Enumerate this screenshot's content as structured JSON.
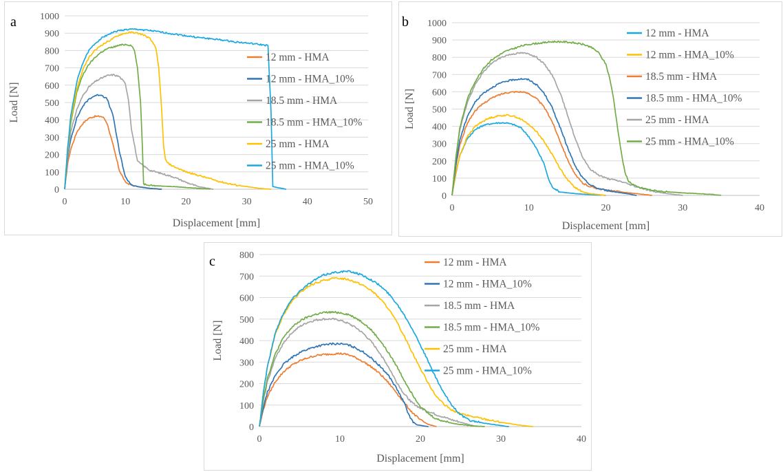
{
  "chart_data": [
    {
      "type": "line",
      "panel_label": "a",
      "xlabel": "Displacement [mm]",
      "ylabel": "Load [N]",
      "xlim": [
        0,
        50
      ],
      "ylim": [
        0,
        1000
      ],
      "x_ticks": [
        "0",
        "10",
        "20",
        "30",
        "40",
        "50"
      ],
      "y_ticks": [
        "0",
        "100",
        "200",
        "300",
        "400",
        "500",
        "600",
        "700",
        "800",
        "900",
        "1000"
      ],
      "grid": "horizontal",
      "legend_position": "right",
      "series": [
        {
          "name": "12 mm - HMA",
          "color": "#ED7D31",
          "x": [
            0,
            0.5,
            1,
            2,
            3,
            4,
            5,
            6,
            6.5,
            7,
            8,
            9,
            10,
            11,
            12,
            14,
            16
          ],
          "y": [
            0,
            150,
            230,
            330,
            380,
            410,
            420,
            420,
            410,
            380,
            250,
            110,
            40,
            25,
            15,
            5,
            0
          ]
        },
        {
          "name": "12 mm - HMA_10%",
          "color": "#2E75B6",
          "x": [
            0,
            0.5,
            1,
            2,
            3,
            4,
            5,
            6,
            7,
            8,
            9,
            10,
            11,
            12,
            14,
            16
          ],
          "y": [
            0,
            180,
            290,
            410,
            480,
            520,
            540,
            545,
            520,
            420,
            220,
            70,
            25,
            15,
            5,
            0
          ]
        },
        {
          "name": "18.5 mm - HMA",
          "color": "#A5A5A5",
          "x": [
            0,
            0.5,
            1,
            2,
            3,
            4,
            5,
            6,
            7,
            8,
            9,
            10,
            10.5,
            11,
            12,
            14,
            16,
            18,
            20,
            22,
            24.5
          ],
          "y": [
            0,
            200,
            330,
            460,
            540,
            590,
            620,
            640,
            655,
            660,
            650,
            610,
            520,
            350,
            160,
            110,
            90,
            70,
            40,
            15,
            0
          ]
        },
        {
          "name": "18.5 mm - HMA_10%",
          "color": "#70AD47",
          "x": [
            0,
            0.5,
            1,
            2,
            3,
            4,
            5,
            6,
            7,
            8,
            9,
            10,
            11,
            11.5,
            12,
            12.5,
            12.8,
            13,
            15,
            18,
            20,
            22,
            24
          ],
          "y": [
            0,
            220,
            380,
            560,
            660,
            720,
            760,
            790,
            810,
            820,
            830,
            835,
            830,
            800,
            700,
            500,
            250,
            30,
            20,
            15,
            10,
            5,
            0
          ]
        },
        {
          "name": "25 mm - HMA",
          "color": "#FFC000",
          "x": [
            0,
            0.5,
            1,
            2,
            3,
            4,
            5,
            6,
            7,
            8,
            9,
            10,
            11,
            12,
            13,
            14,
            15,
            15.5,
            16,
            16.3,
            16.6,
            17,
            18,
            20,
            22,
            24,
            26,
            28,
            30,
            32,
            34
          ],
          "y": [
            0,
            230,
            400,
            580,
            690,
            760,
            800,
            830,
            850,
            870,
            890,
            900,
            905,
            900,
            890,
            870,
            820,
            700,
            450,
            250,
            170,
            150,
            130,
            100,
            80,
            60,
            40,
            25,
            15,
            5,
            0
          ]
        },
        {
          "name": "25 mm - HMA_10%",
          "color": "#1AA8E0",
          "x": [
            0,
            0.5,
            1,
            2,
            3,
            4,
            5,
            6,
            7,
            8,
            9,
            10,
            11,
            12,
            14,
            16,
            18,
            20,
            22,
            24,
            26,
            28,
            30,
            32,
            33.5,
            34,
            34.3,
            35,
            36.5
          ],
          "y": [
            0,
            240,
            420,
            620,
            730,
            800,
            840,
            870,
            890,
            905,
            915,
            920,
            922,
            922,
            915,
            905,
            895,
            885,
            875,
            868,
            860,
            850,
            843,
            835,
            828,
            450,
            15,
            10,
            0
          ]
        }
      ]
    },
    {
      "type": "line",
      "panel_label": "b",
      "xlabel": "Displacement [mm]",
      "ylabel": "Load [N]",
      "xlim": [
        0,
        40
      ],
      "ylim": [
        0,
        1000
      ],
      "x_ticks": [
        "0",
        "10",
        "20",
        "30",
        "40"
      ],
      "y_ticks": [
        "0",
        "100",
        "200",
        "300",
        "400",
        "500",
        "600",
        "700",
        "800",
        "900",
        "1000"
      ],
      "grid": "horizontal",
      "legend_position": "right",
      "series": [
        {
          "name": "12 mm - HMA",
          "color": "#1AA8E0",
          "x": [
            0,
            0.5,
            1,
            2,
            3,
            4,
            5,
            6,
            7,
            8,
            9,
            10,
            11,
            12,
            12.5,
            13,
            14,
            16,
            18,
            20
          ],
          "y": [
            0,
            130,
            230,
            330,
            380,
            405,
            415,
            420,
            420,
            410,
            390,
            340,
            270,
            180,
            100,
            50,
            20,
            10,
            5,
            0
          ]
        },
        {
          "name": "12 mm - HMA_10%",
          "color": "#FFC000",
          "x": [
            0,
            0.5,
            1,
            2,
            3,
            4,
            5,
            6,
            7,
            8,
            9,
            10,
            11,
            12,
            13,
            14,
            15,
            16,
            17,
            18,
            20
          ],
          "y": [
            0,
            130,
            230,
            340,
            400,
            430,
            450,
            460,
            465,
            460,
            440,
            410,
            370,
            310,
            240,
            160,
            90,
            45,
            20,
            10,
            0
          ]
        },
        {
          "name": "18.5 mm - HMA",
          "color": "#ED7D31",
          "x": [
            0,
            0.5,
            1,
            2,
            3,
            4,
            5,
            6,
            7,
            8,
            9,
            10,
            11,
            12,
            13,
            14,
            15,
            16,
            17,
            18,
            20,
            22,
            24,
            26
          ],
          "y": [
            0,
            170,
            290,
            420,
            490,
            530,
            560,
            580,
            595,
            600,
            600,
            590,
            560,
            510,
            430,
            320,
            210,
            120,
            70,
            50,
            30,
            20,
            10,
            0
          ]
        },
        {
          "name": "18.5 mm - HMA_10%",
          "color": "#2E75B6",
          "x": [
            0,
            0.5,
            1,
            2,
            3,
            4,
            5,
            6,
            7,
            8,
            9,
            10,
            11,
            12,
            13,
            14,
            15,
            16,
            17,
            18,
            19,
            20,
            22,
            24
          ],
          "y": [
            0,
            180,
            320,
            460,
            540,
            590,
            620,
            645,
            660,
            670,
            675,
            670,
            640,
            590,
            510,
            400,
            280,
            170,
            100,
            60,
            40,
            30,
            15,
            0
          ]
        },
        {
          "name": "25 mm - HMA",
          "color": "#A5A5A5",
          "x": [
            0,
            0.5,
            1,
            2,
            3,
            4,
            5,
            6,
            7,
            8,
            9,
            10,
            11,
            12,
            13,
            14,
            15,
            16,
            17,
            18,
            19,
            20,
            22,
            24,
            26,
            28,
            30
          ],
          "y": [
            0,
            220,
            380,
            540,
            640,
            710,
            760,
            790,
            810,
            820,
            825,
            820,
            800,
            760,
            700,
            600,
            470,
            330,
            220,
            150,
            120,
            100,
            80,
            50,
            25,
            10,
            0
          ]
        },
        {
          "name": "25 mm - HMA_10%",
          "color": "#70AD47",
          "x": [
            0,
            0.5,
            1,
            2,
            3,
            4,
            5,
            6,
            7,
            8,
            9,
            10,
            11,
            12,
            13,
            14,
            15,
            16,
            17,
            18,
            19,
            20,
            20.5,
            21,
            21.5,
            22,
            22.5,
            23,
            24,
            26,
            28,
            30,
            32,
            34,
            35
          ],
          "y": [
            0,
            220,
            390,
            560,
            660,
            730,
            780,
            810,
            835,
            850,
            865,
            875,
            880,
            885,
            890,
            890,
            888,
            882,
            875,
            860,
            830,
            760,
            680,
            560,
            400,
            250,
            130,
            80,
            50,
            30,
            20,
            15,
            10,
            5,
            0
          ]
        }
      ]
    },
    {
      "type": "line",
      "panel_label": "c",
      "xlabel": "Displacement [mm]",
      "ylabel": "Load [N]",
      "xlim": [
        0,
        40
      ],
      "ylim": [
        0,
        800
      ],
      "x_ticks": [
        "0",
        "10",
        "20",
        "30",
        "40"
      ],
      "y_ticks": [
        "0",
        "100",
        "200",
        "300",
        "400",
        "500",
        "600",
        "700",
        "800"
      ],
      "grid": "horizontal",
      "legend_position": "right",
      "series": [
        {
          "name": "12 mm - HMA",
          "color": "#ED7D31",
          "x": [
            0,
            0.5,
            1,
            2,
            3,
            4,
            5,
            6,
            7,
            8,
            9,
            10,
            11,
            12,
            13,
            14,
            15,
            16,
            17,
            18,
            19,
            20,
            21,
            22
          ],
          "y": [
            0,
            80,
            140,
            210,
            255,
            285,
            305,
            320,
            330,
            335,
            338,
            340,
            335,
            320,
            300,
            275,
            245,
            205,
            160,
            110,
            65,
            30,
            10,
            0
          ]
        },
        {
          "name": "12 mm - HMA_10%",
          "color": "#2E75B6",
          "x": [
            0,
            0.5,
            1,
            2,
            3,
            4,
            5,
            6,
            7,
            8,
            9,
            10,
            11,
            12,
            13,
            14,
            15,
            16,
            17,
            18,
            18.5,
            19,
            19.5,
            20,
            21
          ],
          "y": [
            0,
            90,
            160,
            240,
            290,
            320,
            345,
            360,
            372,
            380,
            385,
            385,
            380,
            365,
            345,
            315,
            280,
            240,
            180,
            110,
            60,
            25,
            10,
            5,
            0
          ]
        },
        {
          "name": "18.5 mm - HMA",
          "color": "#A5A5A5",
          "x": [
            0,
            0.5,
            1,
            2,
            3,
            4,
            5,
            6,
            7,
            8,
            9,
            10,
            11,
            12,
            13,
            14,
            15,
            16,
            17,
            18,
            19,
            20,
            22,
            24,
            26,
            27
          ],
          "y": [
            0,
            120,
            210,
            320,
            390,
            435,
            465,
            485,
            495,
            500,
            500,
            495,
            480,
            460,
            430,
            390,
            340,
            280,
            210,
            150,
            110,
            85,
            55,
            30,
            10,
            0
          ]
        },
        {
          "name": "18.5 mm - HMA_10%",
          "color": "#70AD47",
          "x": [
            0,
            0.5,
            1,
            2,
            3,
            4,
            5,
            6,
            7,
            8,
            9,
            10,
            11,
            12,
            13,
            14,
            15,
            16,
            17,
            18,
            19,
            20,
            21,
            22,
            24,
            26,
            28
          ],
          "y": [
            0,
            130,
            225,
            340,
            415,
            460,
            490,
            510,
            522,
            530,
            532,
            530,
            522,
            505,
            480,
            445,
            400,
            345,
            285,
            215,
            150,
            95,
            60,
            35,
            15,
            5,
            0
          ]
        },
        {
          "name": "25 mm - HMA",
          "color": "#FFC000",
          "x": [
            0,
            0.5,
            1,
            2,
            3,
            4,
            5,
            6,
            7,
            8,
            9,
            10,
            11,
            12,
            13,
            14,
            15,
            16,
            17,
            18,
            19,
            20,
            21,
            22,
            23,
            24,
            25,
            26,
            28,
            30,
            32,
            34
          ],
          "y": [
            0,
            160,
            280,
            430,
            520,
            580,
            620,
            650,
            668,
            680,
            688,
            690,
            685,
            672,
            655,
            630,
            595,
            550,
            490,
            420,
            345,
            270,
            200,
            140,
            100,
            75,
            60,
            50,
            35,
            20,
            8,
            0
          ]
        },
        {
          "name": "25 mm - HMA_10%",
          "color": "#1AA8E0",
          "x": [
            0,
            0.5,
            1,
            2,
            3,
            4,
            5,
            6,
            7,
            8,
            9,
            10,
            11,
            12,
            13,
            14,
            15,
            16,
            17,
            18,
            19,
            20,
            21,
            22,
            23,
            24,
            25,
            26,
            28,
            30,
            31
          ],
          "y": [
            0,
            160,
            280,
            440,
            530,
            590,
            630,
            660,
            685,
            705,
            715,
            720,
            722,
            715,
            700,
            680,
            655,
            620,
            575,
            520,
            455,
            380,
            300,
            220,
            150,
            95,
            55,
            30,
            15,
            5,
            0
          ]
        }
      ]
    }
  ]
}
